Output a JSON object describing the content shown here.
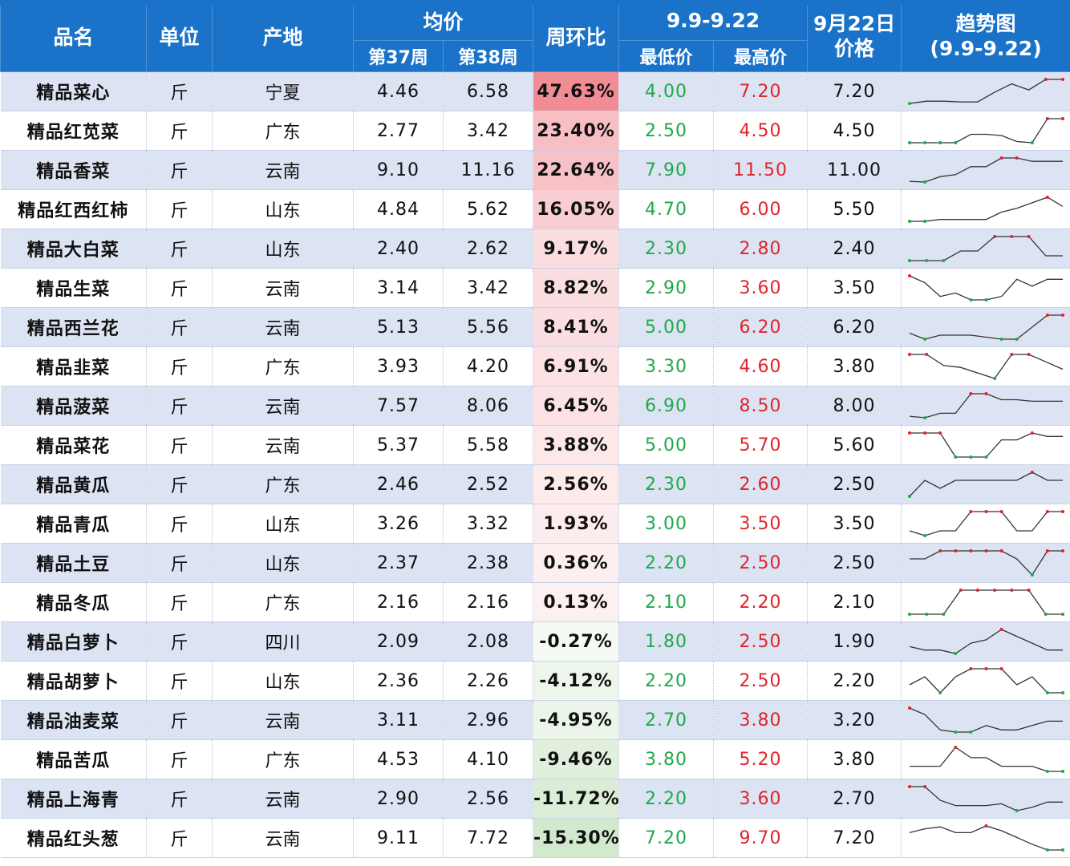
{
  "header": {
    "name": "品名",
    "unit": "单位",
    "origin": "产地",
    "avg_price": "均价",
    "week37": "第37周",
    "week38": "第38周",
    "wow": "周环比",
    "range": "9.9-9.22",
    "min_price": "最低价",
    "max_price": "最高价",
    "date_line1": "9月22日",
    "date_line2": "价格",
    "trend_line1": "趋势图",
    "trend_line2": "(9.9-9.22)"
  },
  "colors": {
    "header_bg": "#1a73c9",
    "row_alt": "#dce3f3",
    "low_green": "#1fa84a",
    "high_red": "#e0242a",
    "pos_change": "#f4a7ad",
    "neg_change": "#d9ecd8"
  },
  "rows": [
    {
      "name": "精品菜心",
      "unit": "斤",
      "origin": "宁夏",
      "w37": "4.46",
      "w38": "6.58",
      "chg": "47.63%",
      "chg_value": 47.63,
      "min": "4.00",
      "max": "7.20",
      "price": "7.20",
      "trend": [
        4.0,
        4.3,
        4.3,
        4.2,
        4.2,
        5.5,
        6.6,
        5.8,
        7.2,
        7.2
      ]
    },
    {
      "name": "精品红苋菜",
      "unit": "斤",
      "origin": "广东",
      "w37": "2.77",
      "w38": "3.42",
      "chg": "23.40%",
      "chg_value": 23.4,
      "min": "2.50",
      "max": "4.50",
      "price": "4.50",
      "trend": [
        2.5,
        2.5,
        2.5,
        2.5,
        3.2,
        3.2,
        3.1,
        2.6,
        2.5,
        4.5,
        4.5
      ]
    },
    {
      "name": "精品香菜",
      "unit": "斤",
      "origin": "云南",
      "w37": "9.10",
      "w38": "11.16",
      "chg": "22.64%",
      "chg_value": 22.64,
      "min": "7.90",
      "max": "11.50",
      "price": "11.00",
      "trend": [
        8.0,
        7.9,
        8.7,
        9.0,
        10.2,
        10.2,
        11.5,
        11.5,
        11.0,
        11.0,
        11.0
      ]
    },
    {
      "name": "精品红西红柿",
      "unit": "斤",
      "origin": "山东",
      "w37": "4.84",
      "w38": "5.62",
      "chg": "16.05%",
      "chg_value": 16.05,
      "min": "4.70",
      "max": "6.00",
      "price": "5.50",
      "trend": [
        4.7,
        4.7,
        4.8,
        4.8,
        4.8,
        4.8,
        5.2,
        5.4,
        5.7,
        6.0,
        5.5
      ]
    },
    {
      "name": "精品大白菜",
      "unit": "斤",
      "origin": "山东",
      "w37": "2.40",
      "w38": "2.62",
      "chg": "9.17%",
      "chg_value": 9.17,
      "min": "2.30",
      "max": "2.80",
      "price": "2.40",
      "trend": [
        2.3,
        2.3,
        2.3,
        2.5,
        2.5,
        2.8,
        2.8,
        2.8,
        2.4,
        2.4
      ]
    },
    {
      "name": "精品生菜",
      "unit": "斤",
      "origin": "云南",
      "w37": "3.14",
      "w38": "3.42",
      "chg": "8.82%",
      "chg_value": 8.82,
      "min": "2.90",
      "max": "3.60",
      "price": "3.50",
      "trend": [
        3.6,
        3.4,
        3.0,
        3.1,
        2.9,
        2.9,
        3.0,
        3.5,
        3.3,
        3.5,
        3.5
      ]
    },
    {
      "name": "精品西兰花",
      "unit": "斤",
      "origin": "云南",
      "w37": "5.13",
      "w38": "5.56",
      "chg": "8.41%",
      "chg_value": 8.41,
      "min": "5.00",
      "max": "6.20",
      "price": "6.20",
      "trend": [
        5.3,
        5.0,
        5.2,
        5.2,
        5.2,
        5.1,
        5.0,
        5.0,
        5.6,
        6.2,
        6.2
      ]
    },
    {
      "name": "精品韭菜",
      "unit": "斤",
      "origin": "广东",
      "w37": "3.93",
      "w38": "4.20",
      "chg": "6.91%",
      "chg_value": 6.91,
      "min": "3.30",
      "max": "4.60",
      "price": "3.80",
      "trend": [
        4.6,
        4.6,
        4.0,
        3.9,
        3.6,
        3.3,
        4.6,
        4.6,
        4.2,
        3.8
      ]
    },
    {
      "name": "精品菠菜",
      "unit": "斤",
      "origin": "云南",
      "w37": "7.57",
      "w38": "8.06",
      "chg": "6.45%",
      "chg_value": 6.45,
      "min": "6.90",
      "max": "8.50",
      "price": "8.00",
      "trend": [
        7.0,
        6.9,
        7.2,
        7.2,
        8.5,
        8.5,
        8.1,
        8.1,
        8.0,
        8.0,
        8.0
      ]
    },
    {
      "name": "精品菜花",
      "unit": "斤",
      "origin": "云南",
      "w37": "5.37",
      "w38": "5.58",
      "chg": "3.88%",
      "chg_value": 3.88,
      "min": "5.00",
      "max": "5.70",
      "price": "5.60",
      "trend": [
        5.7,
        5.7,
        5.7,
        5.0,
        5.0,
        5.0,
        5.5,
        5.5,
        5.7,
        5.6,
        5.6
      ]
    },
    {
      "name": "精品黄瓜",
      "unit": "斤",
      "origin": "广东",
      "w37": "2.46",
      "w38": "2.52",
      "chg": "2.56%",
      "chg_value": 2.56,
      "min": "2.30",
      "max": "2.60",
      "price": "2.50",
      "trend": [
        2.3,
        2.5,
        2.4,
        2.5,
        2.5,
        2.5,
        2.5,
        2.5,
        2.6,
        2.5,
        2.5
      ]
    },
    {
      "name": "精品青瓜",
      "unit": "斤",
      "origin": "山东",
      "w37": "3.26",
      "w38": "3.32",
      "chg": "1.93%",
      "chg_value": 1.93,
      "min": "3.00",
      "max": "3.50",
      "price": "3.50",
      "trend": [
        3.1,
        3.0,
        3.1,
        3.1,
        3.5,
        3.5,
        3.5,
        3.1,
        3.1,
        3.5,
        3.5
      ]
    },
    {
      "name": "精品土豆",
      "unit": "斤",
      "origin": "山东",
      "w37": "2.37",
      "w38": "2.38",
      "chg": "0.36%",
      "chg_value": 0.36,
      "min": "2.20",
      "max": "2.50",
      "price": "2.50",
      "trend": [
        2.4,
        2.4,
        2.5,
        2.5,
        2.5,
        2.5,
        2.5,
        2.4,
        2.2,
        2.5,
        2.5
      ]
    },
    {
      "name": "精品冬瓜",
      "unit": "斤",
      "origin": "广东",
      "w37": "2.16",
      "w38": "2.16",
      "chg": "0.13%",
      "chg_value": 0.13,
      "min": "2.10",
      "max": "2.20",
      "price": "2.10",
      "trend": [
        2.1,
        2.1,
        2.1,
        2.2,
        2.2,
        2.2,
        2.2,
        2.2,
        2.1,
        2.1
      ]
    },
    {
      "name": "精品白萝卜",
      "unit": "斤",
      "origin": "四川",
      "w37": "2.09",
      "w38": "2.08",
      "chg": "-0.27%",
      "chg_value": -0.27,
      "min": "1.80",
      "max": "2.50",
      "price": "1.90",
      "trend": [
        2.0,
        1.9,
        1.9,
        1.8,
        2.1,
        2.2,
        2.5,
        2.3,
        2.1,
        1.9,
        1.9
      ]
    },
    {
      "name": "精品胡萝卜",
      "unit": "斤",
      "origin": "山东",
      "w37": "2.36",
      "w38": "2.26",
      "chg": "-4.12%",
      "chg_value": -4.12,
      "min": "2.20",
      "max": "2.50",
      "price": "2.20",
      "trend": [
        2.3,
        2.4,
        2.2,
        2.4,
        2.5,
        2.5,
        2.5,
        2.3,
        2.4,
        2.2,
        2.2
      ]
    },
    {
      "name": "精品油麦菜",
      "unit": "斤",
      "origin": "云南",
      "w37": "3.11",
      "w38": "2.96",
      "chg": "-4.95%",
      "chg_value": -4.95,
      "min": "2.70",
      "max": "3.80",
      "price": "3.20",
      "trend": [
        3.8,
        3.5,
        2.8,
        2.7,
        2.7,
        3.0,
        2.8,
        2.8,
        3.0,
        3.2,
        3.2
      ]
    },
    {
      "name": "精品苦瓜",
      "unit": "斤",
      "origin": "广东",
      "w37": "4.53",
      "w38": "4.10",
      "chg": "-9.46%",
      "chg_value": -9.46,
      "min": "3.80",
      "max": "5.20",
      "price": "3.80",
      "trend": [
        4.1,
        4.1,
        4.1,
        5.2,
        4.6,
        4.6,
        4.1,
        4.1,
        4.1,
        3.8,
        3.8
      ]
    },
    {
      "name": "精品上海青",
      "unit": "斤",
      "origin": "云南",
      "w37": "2.90",
      "w38": "2.56",
      "chg": "-11.72%",
      "chg_value": -11.72,
      "min": "2.20",
      "max": "3.60",
      "price": "2.70",
      "trend": [
        3.6,
        3.6,
        2.8,
        2.5,
        2.5,
        2.5,
        2.6,
        2.2,
        2.4,
        2.7,
        2.7
      ]
    },
    {
      "name": "精品红头葱",
      "unit": "斤",
      "origin": "云南",
      "w37": "9.11",
      "w38": "7.72",
      "chg": "-15.30%",
      "chg_value": -15.3,
      "min": "7.20",
      "max": "9.70",
      "price": "7.20",
      "trend": [
        9.0,
        9.4,
        9.6,
        9.0,
        9.0,
        9.7,
        9.2,
        8.5,
        7.8,
        7.2,
        7.2
      ]
    }
  ]
}
